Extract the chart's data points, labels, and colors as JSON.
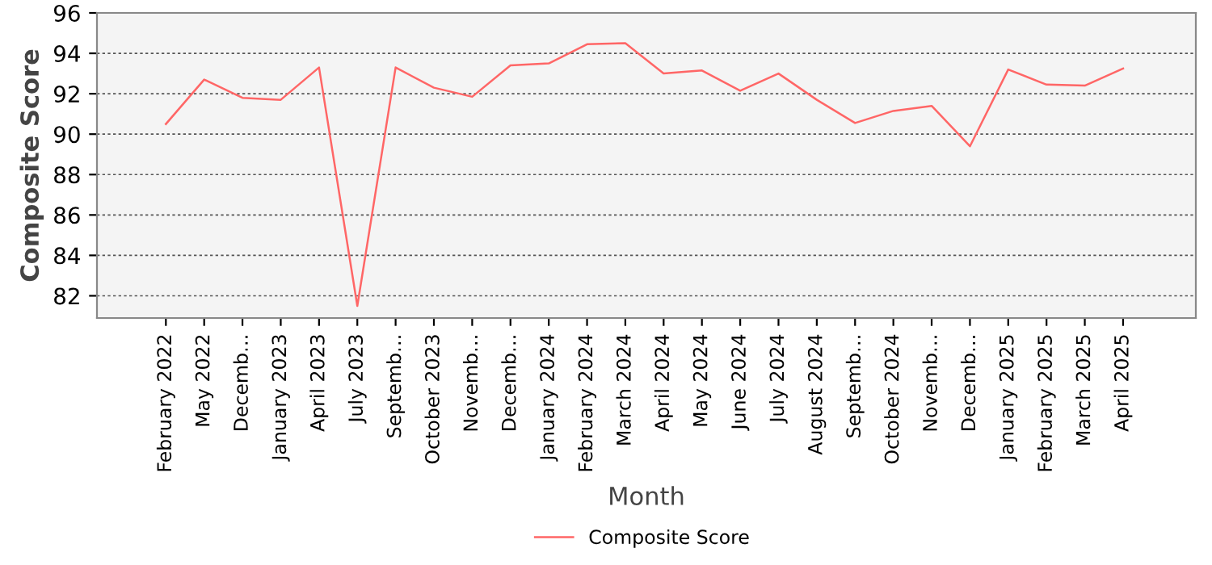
{
  "chart_data": {
    "type": "line",
    "xlabel": "Month",
    "ylabel": "Composite Score",
    "categories": [
      "February 2022",
      "May 2022",
      "Decemb…",
      "January 2023",
      "April 2023",
      "July 2023",
      "Septemb…",
      "October 2023",
      "Novemb…",
      "Decemb…",
      "January 2024",
      "February 2024",
      "March 2024",
      "April 2024",
      "May 2024",
      "June 2024",
      "July 2024",
      "August 2024",
      "Septemb…",
      "October 2024",
      "Novemb…",
      "Decemb…",
      "January 2025",
      "February 2025",
      "March 2025",
      "April 2025"
    ],
    "series": [
      {
        "name": "Composite Score",
        "color": "#ff6666",
        "values": [
          90.5,
          92.7,
          91.8,
          91.7,
          93.3,
          81.5,
          93.3,
          92.3,
          91.85,
          93.4,
          93.5,
          94.45,
          94.5,
          93.0,
          93.15,
          92.15,
          93.0,
          91.7,
          90.55,
          91.15,
          91.4,
          89.4,
          93.2,
          92.45,
          92.4,
          93.25
        ]
      }
    ],
    "ylim": [
      80.9,
      96
    ],
    "yticks": [
      82,
      84,
      86,
      88,
      90,
      92,
      94,
      96
    ],
    "grid": "y",
    "legend": "bottom",
    "marker": "none",
    "line_style": "solid"
  }
}
